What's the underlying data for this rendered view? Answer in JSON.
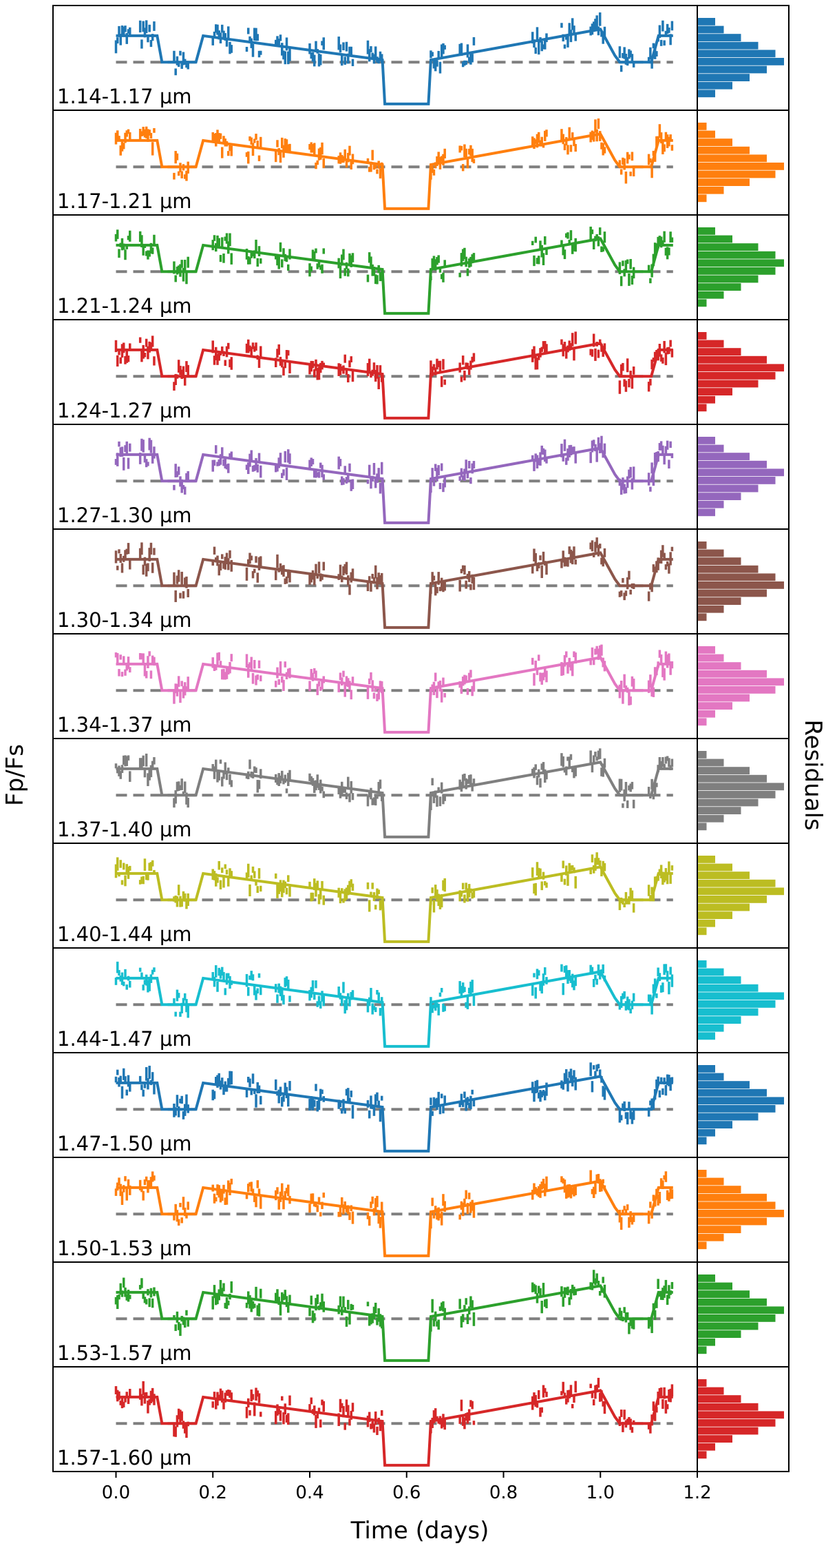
{
  "chart_data": {
    "type": "line",
    "title": "",
    "xlabel": "Time (days)",
    "ylabel": "Fp/Fs",
    "residuals_label": "Residuals",
    "xlim": [
      -0.13,
      1.2
    ],
    "ylim": [
      -1.0,
      1.0
    ],
    "xticks": [
      0.0,
      0.2,
      0.4,
      0.6,
      0.8,
      1.0,
      1.2
    ],
    "xtick_labels": [
      "0.0",
      "0.2",
      "0.4",
      "0.6",
      "0.8",
      "1.0",
      "1.2"
    ],
    "panel_label_unit": "μm",
    "model": {
      "description_points": "normalized flux model shared by all bands",
      "x": [
        0.0,
        0.085,
        0.095,
        0.165,
        0.18,
        0.55,
        0.555,
        0.645,
        0.65,
        1.0,
        1.03,
        1.04,
        1.105,
        1.12,
        1.15
      ],
      "y": [
        0.55,
        0.55,
        -0.05,
        -0.05,
        0.55,
        0.0,
        -1.0,
        -1.0,
        0.0,
        0.7,
        0.1,
        -0.05,
        -0.05,
        0.55,
        0.55
      ],
      "baseline": -0.05
    },
    "panels": [
      {
        "label": "1.14-1.17",
        "color": "#1f77b4",
        "hist": [
          2,
          3,
          5,
          7,
          9,
          10,
          8,
          6,
          4,
          2
        ]
      },
      {
        "label": "1.17-1.21",
        "color": "#ff7f0e",
        "hist": [
          1,
          2,
          4,
          6,
          8,
          10,
          9,
          6,
          3,
          1
        ]
      },
      {
        "label": "1.21-1.24",
        "color": "#2ca02c",
        "hist": [
          2,
          4,
          7,
          9,
          10,
          9,
          7,
          5,
          3,
          1
        ]
      },
      {
        "label": "1.24-1.27",
        "color": "#d62728",
        "hist": [
          1,
          3,
          5,
          8,
          10,
          9,
          7,
          4,
          2,
          1
        ]
      },
      {
        "label": "1.27-1.30",
        "color": "#9467bd",
        "hist": [
          2,
          3,
          6,
          8,
          10,
          9,
          7,
          5,
          3,
          2
        ]
      },
      {
        "label": "1.30-1.34",
        "color": "#8c564b",
        "hist": [
          1,
          3,
          5,
          7,
          9,
          10,
          8,
          5,
          3,
          1
        ]
      },
      {
        "label": "1.34-1.37",
        "color": "#e377c2",
        "hist": [
          2,
          3,
          5,
          8,
          10,
          9,
          6,
          4,
          2,
          1
        ]
      },
      {
        "label": "1.37-1.40",
        "color": "#7f7f7f",
        "hist": [
          1,
          3,
          6,
          8,
          10,
          9,
          7,
          5,
          3,
          1
        ]
      },
      {
        "label": "1.40-1.44",
        "color": "#bcbd22",
        "hist": [
          2,
          4,
          6,
          9,
          10,
          8,
          6,
          4,
          2,
          1
        ]
      },
      {
        "label": "1.44-1.47",
        "color": "#17becf",
        "hist": [
          1,
          3,
          5,
          7,
          10,
          9,
          7,
          5,
          3,
          2
        ]
      },
      {
        "label": "1.47-1.50",
        "color": "#1f77b4",
        "hist": [
          2,
          3,
          6,
          8,
          10,
          9,
          7,
          4,
          2,
          1
        ]
      },
      {
        "label": "1.50-1.53",
        "color": "#ff7f0e",
        "hist": [
          1,
          3,
          5,
          8,
          9,
          10,
          8,
          5,
          3,
          1
        ]
      },
      {
        "label": "1.53-1.57",
        "color": "#2ca02c",
        "hist": [
          2,
          4,
          6,
          8,
          10,
          9,
          7,
          5,
          2,
          1
        ]
      },
      {
        "label": "1.57-1.60",
        "color": "#d62728",
        "hist": [
          1,
          3,
          5,
          7,
          10,
          9,
          7,
          4,
          2,
          1
        ]
      }
    ],
    "baseline_color": "#7f7f7f"
  }
}
